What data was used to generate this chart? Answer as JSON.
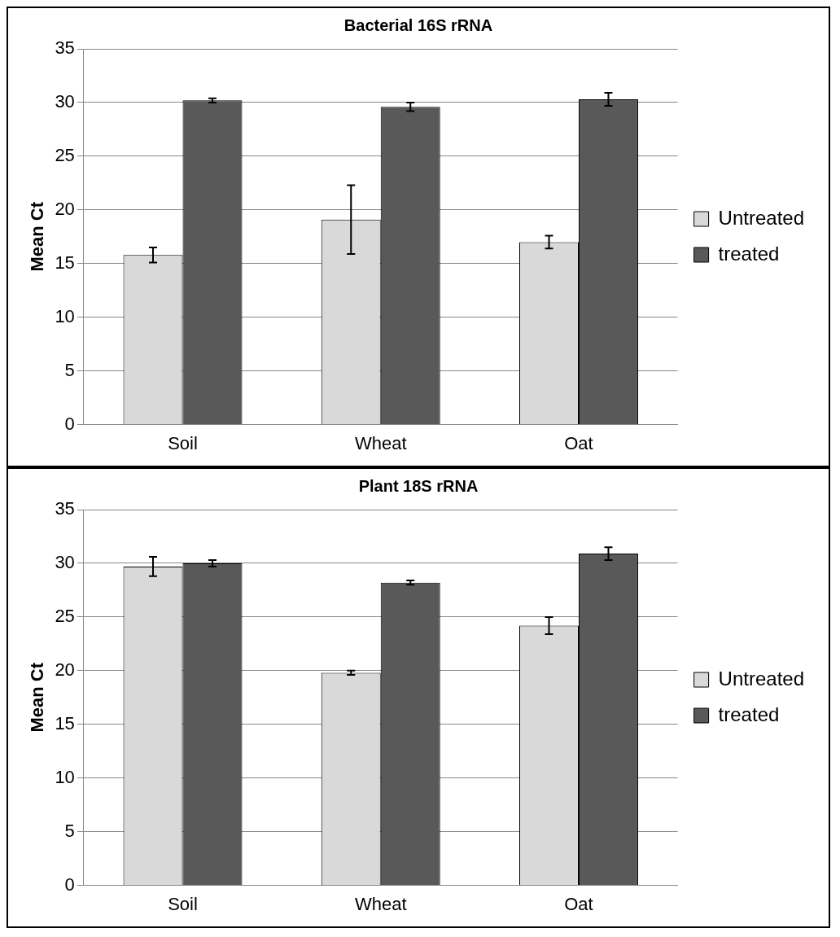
{
  "chart_data": [
    {
      "type": "bar",
      "title": "Bacterial 16S rRNA",
      "ylabel": "Mean Ct",
      "categories": [
        "Soil",
        "Wheat",
        "Oat"
      ],
      "series": [
        {
          "name": "Untreated",
          "color": "#d9d9d9",
          "values": [
            15.8,
            19.1,
            17.0
          ],
          "errors": [
            0.7,
            3.2,
            0.6
          ]
        },
        {
          "name": "treated",
          "color": "#595959",
          "values": [
            30.2,
            29.6,
            30.3
          ],
          "errors": [
            0.2,
            0.4,
            0.6
          ]
        }
      ],
      "ylim": [
        0,
        35
      ],
      "yticks": [
        0,
        5,
        10,
        15,
        20,
        25,
        30,
        35
      ],
      "grid": "y",
      "legend": "right"
    },
    {
      "type": "bar",
      "title": "Plant 18S rRNA",
      "ylabel": "Mean Ct",
      "categories": [
        "Soil",
        "Wheat",
        "Oat"
      ],
      "series": [
        {
          "name": "Untreated",
          "color": "#d9d9d9",
          "values": [
            29.7,
            19.8,
            24.2
          ],
          "errors": [
            0.9,
            0.2,
            0.8
          ]
        },
        {
          "name": "treated",
          "color": "#595959",
          "values": [
            30.0,
            28.2,
            30.9
          ],
          "errors": [
            0.3,
            0.2,
            0.6
          ]
        }
      ],
      "ylim": [
        0,
        35
      ],
      "yticks": [
        0,
        5,
        10,
        15,
        20,
        25,
        30,
        35
      ],
      "grid": "y",
      "legend": "right"
    }
  ]
}
